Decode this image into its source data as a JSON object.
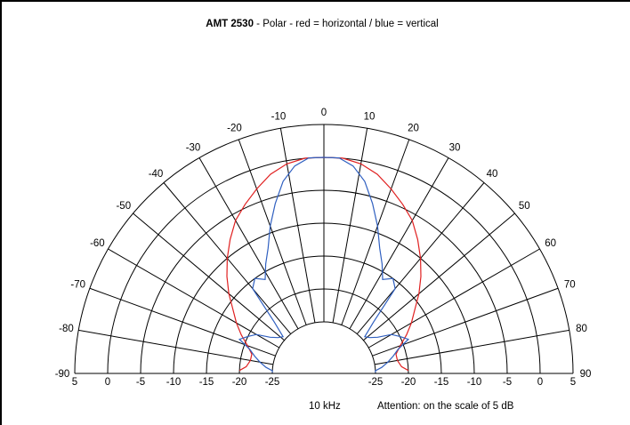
{
  "chart_data": {
    "type": "polar",
    "title_bold": "AMT 2530",
    "title_rest": " - Polar  - red = horizontal / blue = vertical",
    "frequency_label": "10 kHz",
    "note_bold": "Attention:",
    "note_rest": " on the scale of 5 dB",
    "angle_ticks": [
      "-90",
      "-80",
      "-70",
      "-60",
      "-50",
      "-40",
      "-30",
      "-20",
      "-10",
      "0",
      "10",
      "20",
      "30",
      "40",
      "50",
      "60",
      "70",
      "80",
      "90"
    ],
    "db_ticks_left": [
      "5",
      "0",
      "-5",
      "-10",
      "-15",
      "-20",
      "-25"
    ],
    "db_ticks_right": [
      "-25",
      "-20",
      "-15",
      "-10",
      "-5",
      "0",
      "5"
    ],
    "radial_range_db": [
      -25,
      5
    ],
    "series": [
      {
        "color": "#e02020",
        "angles": [
          -88,
          -85,
          -80,
          -75,
          -70,
          -65,
          -60,
          -55,
          -50,
          -45,
          -40,
          -35,
          -30,
          -25,
          -20,
          -15,
          -10,
          -5,
          0,
          5,
          10,
          15,
          20,
          25,
          30,
          35,
          40,
          45,
          50,
          55,
          60,
          65,
          70,
          75,
          80,
          85,
          88
        ],
        "values": [
          -20,
          -21,
          -21.5,
          -21.5,
          -20.5,
          -19,
          -17.5,
          -16,
          -14,
          -12,
          -10,
          -8,
          -6,
          -4.5,
          -3,
          -1.5,
          -0.5,
          0,
          0,
          0,
          -0.5,
          -1.5,
          -3,
          -4.5,
          -6,
          -8,
          -10,
          -12,
          -14,
          -16,
          -17.5,
          -19,
          -20.5,
          -21.5,
          -21.5,
          -21,
          -20
        ]
      },
      {
        "color": "#3060c0",
        "angles": [
          -89,
          -87,
          -84,
          -80,
          -76,
          -72,
          -68,
          -64,
          -60,
          -56,
          -52,
          -48,
          -44,
          -40,
          -36,
          -32,
          -28,
          -24,
          -20,
          -16,
          -12,
          -8,
          -4,
          0,
          4,
          8,
          12,
          16,
          20,
          24,
          28,
          32,
          36,
          40,
          44,
          48,
          52,
          56,
          60,
          64,
          68,
          72,
          76,
          80,
          84,
          87,
          89
        ],
        "values": [
          -25,
          -25,
          -24,
          -23,
          -22,
          -21,
          -19,
          -20,
          -21,
          -23,
          -24,
          -24.5,
          -22,
          -16,
          -15,
          -16,
          -14,
          -12,
          -9,
          -6,
          -3,
          -1,
          0,
          0,
          0,
          -1,
          -3,
          -6,
          -9,
          -12,
          -14,
          -16,
          -15,
          -16,
          -22,
          -24.5,
          -24,
          -23,
          -21,
          -20,
          -19,
          -21,
          -22,
          -23,
          -24,
          -25,
          -25
        ]
      }
    ]
  }
}
